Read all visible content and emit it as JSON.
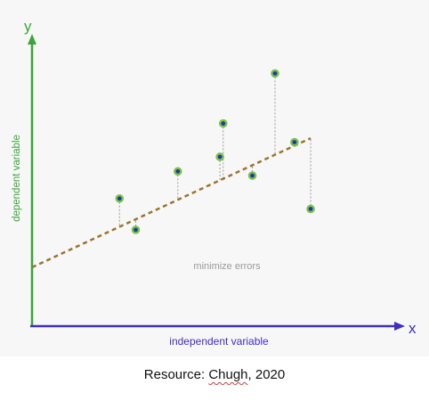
{
  "diagram": {
    "y_axis_letter": "y",
    "x_axis_letter": "x",
    "y_axis_label": "dependent variable",
    "x_axis_label": "independent variable",
    "annotation": "minimize errors",
    "colors": {
      "background": "#f7f7f7",
      "y_axis": "#3aa63a",
      "x_axis": "#3f2fbf",
      "fit_line": "#9a7430",
      "point_fill": "#1f3aa8",
      "point_ring": "#7cc24a",
      "residual": "#9a9a9a",
      "annotation_text": "#9a9a9a"
    },
    "fit_line": {
      "style": "dashed",
      "intercept": 0.0,
      "slope": 0.72
    },
    "points": [
      {
        "x": 0.27,
        "y": 0.33
      },
      {
        "x": 0.32,
        "y": 0.18
      },
      {
        "x": 0.45,
        "y": 0.46
      },
      {
        "x": 0.58,
        "y": 0.53
      },
      {
        "x": 0.59,
        "y": 0.69
      },
      {
        "x": 0.68,
        "y": 0.44
      },
      {
        "x": 0.75,
        "y": 0.93
      },
      {
        "x": 0.81,
        "y": 0.6
      },
      {
        "x": 0.86,
        "y": 0.28
      }
    ]
  },
  "caption": {
    "prefix": "Resource: ",
    "author": "Chugh",
    "suffix": ", 2020"
  }
}
